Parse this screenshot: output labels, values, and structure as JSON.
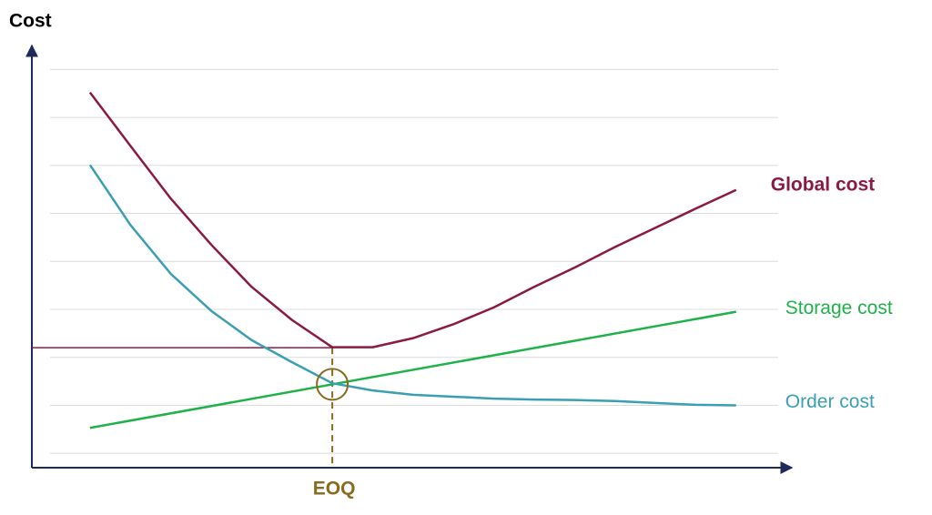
{
  "chart_data": {
    "type": "line",
    "ylabel": "Cost",
    "xlim": [
      0.28,
      9.69
    ],
    "ylim": [
      -0.3,
      8.5
    ],
    "yticks": [
      0,
      1,
      2,
      3,
      4,
      5,
      6,
      7,
      8
    ],
    "grid": true,
    "series": [
      {
        "name": "Global cost",
        "color": "#8b1a42",
        "x": [
          1,
          1.5,
          2,
          2.5,
          3,
          3.5,
          4,
          4.5,
          5,
          5.5,
          6,
          6.5,
          7,
          7.5,
          8,
          8.5,
          9
        ],
        "values": [
          7.52,
          6.41,
          5.31,
          4.35,
          3.47,
          2.78,
          2.21,
          2.21,
          2.4,
          2.69,
          3.04,
          3.47,
          3.87,
          4.3,
          4.7,
          5.1,
          5.49
        ]
      },
      {
        "name": "Storage cost",
        "color": "#1fb14a",
        "x": [
          1,
          9
        ],
        "values": [
          0.53,
          2.95
        ]
      },
      {
        "name": "Order cost",
        "color": "#3a9fb2",
        "x": [
          1,
          1.5,
          2,
          2.5,
          3,
          3.5,
          4,
          4.5,
          5,
          5.5,
          6,
          6.5,
          7,
          7.5,
          8,
          8.5,
          9
        ],
        "values": [
          6.01,
          4.76,
          3.74,
          2.97,
          2.36,
          1.9,
          1.46,
          1.31,
          1.22,
          1.18,
          1.14,
          1.12,
          1.11,
          1.09,
          1.05,
          1.01,
          1.0
        ]
      }
    ],
    "eoq": {
      "label": "EOQ",
      "x": 4,
      "y": 2.2,
      "color": "#8a6a1e"
    }
  }
}
